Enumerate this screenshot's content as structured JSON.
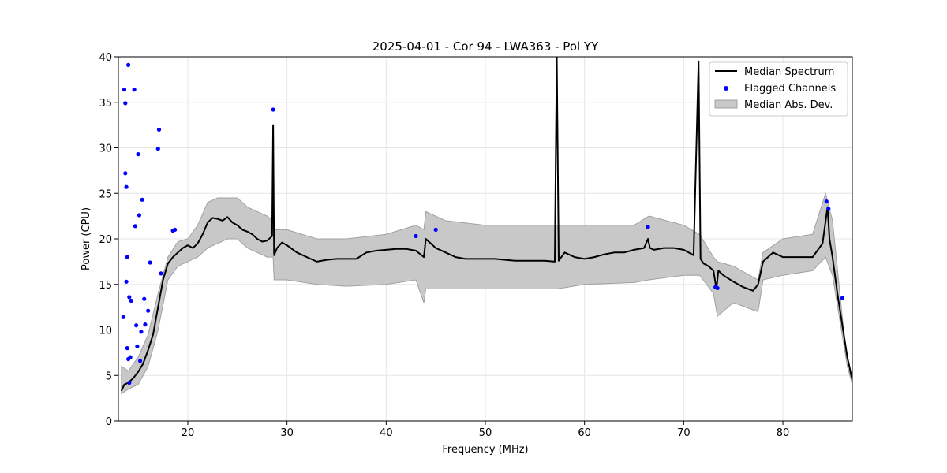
{
  "chart_data": {
    "type": "line",
    "title": "2025-04-01 - Cor 94 - LWA363 - Pol YY",
    "xlabel": "Frequency (MHz)",
    "ylabel": "Power (CPU)",
    "xlim": [
      13.0,
      87.0
    ],
    "ylim": [
      0,
      40
    ],
    "xticks": [
      20,
      30,
      40,
      50,
      60,
      70,
      80
    ],
    "yticks": [
      0,
      5,
      10,
      15,
      20,
      25,
      30,
      35,
      40
    ],
    "grid": true,
    "legend_position": "top-right",
    "legend": [
      "Median Spectrum",
      "Flagged Channels",
      "Median Abs. Dev."
    ],
    "colors": {
      "median": "#000000",
      "flagged": "#0000ff",
      "mad_fill": "#c8c8c8",
      "mad_edge": "#a0a0a0"
    },
    "series": [
      {
        "name": "Median Spectrum",
        "x": [
          13.3,
          13.6,
          14.0,
          14.5,
          15.0,
          15.5,
          16.0,
          16.5,
          17.0,
          17.5,
          18.0,
          18.5,
          19.0,
          19.5,
          20.0,
          20.5,
          21.0,
          21.5,
          22.0,
          22.5,
          23.0,
          23.5,
          24.0,
          24.5,
          25.0,
          25.5,
          26.0,
          26.5,
          27.0,
          27.5,
          28.0,
          28.5,
          28.6,
          28.7,
          29.0,
          29.5,
          30.0,
          31.0,
          32.0,
          33.0,
          34.0,
          35.0,
          36.0,
          37.0,
          38.0,
          39.0,
          40.0,
          41.0,
          42.0,
          43.0,
          43.8,
          44.0,
          45.0,
          46.0,
          47.0,
          48.0,
          49.0,
          50.0,
          51.0,
          52.0,
          53.0,
          54.0,
          55.0,
          56.0,
          57.0,
          57.2,
          57.4,
          58.0,
          59.0,
          60.0,
          61.0,
          62.0,
          63.0,
          64.0,
          65.0,
          66.0,
          66.4,
          66.6,
          67.0,
          68.0,
          69.0,
          70.0,
          71.0,
          71.5,
          71.7,
          72.0,
          72.5,
          73.0,
          73.3,
          73.5,
          74.0,
          75.0,
          76.0,
          77.0,
          77.5,
          78.0,
          79.0,
          80.0,
          81.0,
          82.0,
          83.0,
          84.0,
          84.5,
          84.7,
          85.0,
          85.5,
          86.0,
          86.5,
          87.0
        ],
        "values": [
          3.3,
          4.0,
          4.2,
          4.7,
          5.4,
          6.3,
          7.8,
          9.5,
          12.5,
          15.5,
          17.3,
          18.0,
          18.5,
          19.0,
          19.3,
          19.0,
          19.5,
          20.5,
          21.8,
          22.3,
          22.2,
          22.0,
          22.4,
          21.8,
          21.5,
          21.0,
          20.8,
          20.5,
          20.0,
          19.7,
          19.8,
          20.3,
          32.5,
          18.2,
          19.0,
          19.6,
          19.3,
          18.5,
          18.0,
          17.5,
          17.7,
          17.8,
          17.8,
          17.8,
          18.5,
          18.7,
          18.8,
          18.9,
          18.9,
          18.7,
          18.0,
          20.0,
          19.0,
          18.5,
          18.0,
          17.8,
          17.8,
          17.8,
          17.8,
          17.7,
          17.6,
          17.6,
          17.6,
          17.6,
          17.5,
          40.0,
          17.6,
          18.5,
          18.0,
          17.8,
          18.0,
          18.3,
          18.5,
          18.5,
          18.8,
          19.0,
          20.0,
          19.0,
          18.8,
          19.0,
          19.0,
          18.8,
          18.2,
          39.5,
          17.8,
          17.3,
          17.0,
          16.5,
          14.5,
          16.5,
          16.0,
          15.3,
          14.7,
          14.3,
          15.0,
          17.5,
          18.5,
          18.0,
          18.0,
          18.0,
          18.0,
          19.5,
          23.5,
          20.0,
          18.0,
          14.0,
          10.5,
          7.0,
          4.5
        ]
      }
    ],
    "mad_band": {
      "name": "Median Abs. Dev.",
      "x": [
        13.3,
        14.0,
        15.0,
        16.0,
        17.0,
        18.0,
        19.0,
        20.0,
        21.0,
        22.0,
        23.0,
        24.0,
        25.0,
        26.0,
        27.0,
        28.0,
        28.6,
        28.7,
        30.0,
        33.0,
        36.0,
        40.0,
        43.0,
        43.8,
        44.0,
        46.0,
        50.0,
        55.0,
        57.2,
        60.0,
        65.0,
        66.5,
        70.0,
        71.6,
        73.0,
        73.4,
        75.0,
        77.5,
        78.0,
        80.0,
        83.0,
        84.3,
        85.0,
        86.5,
        87.0
      ],
      "upper": [
        6.0,
        5.5,
        7.0,
        9.5,
        14.0,
        18.0,
        19.7,
        20.0,
        21.5,
        24.0,
        24.5,
        24.5,
        24.5,
        23.5,
        23.0,
        22.5,
        22.0,
        21.0,
        21.0,
        20.0,
        20.0,
        20.5,
        21.5,
        21.0,
        23.0,
        22.0,
        21.5,
        21.5,
        21.5,
        21.5,
        21.5,
        22.5,
        21.5,
        20.5,
        18.0,
        17.5,
        17.0,
        15.5,
        18.5,
        20.0,
        20.5,
        25.0,
        22.0,
        6.0,
        4.5
      ],
      "lower": [
        3.0,
        3.5,
        4.0,
        6.0,
        10.0,
        15.5,
        17.0,
        17.5,
        18.0,
        19.0,
        19.5,
        20.0,
        20.0,
        19.0,
        18.5,
        18.0,
        18.0,
        15.5,
        15.5,
        15.0,
        14.8,
        15.0,
        15.5,
        13.0,
        14.5,
        14.5,
        14.5,
        14.5,
        14.5,
        15.0,
        15.2,
        15.5,
        16.0,
        16.0,
        14.0,
        11.5,
        13.0,
        12.0,
        15.5,
        16.0,
        16.5,
        18.0,
        16.0,
        6.0,
        4.0
      ]
    },
    "flagged_channels": {
      "name": "Flagged Channels",
      "x": [
        13.5,
        13.6,
        13.7,
        13.7,
        13.8,
        13.8,
        13.9,
        13.9,
        14.0,
        14.0,
        14.1,
        14.1,
        14.2,
        14.3,
        14.6,
        14.7,
        14.8,
        14.9,
        15.0,
        15.1,
        15.2,
        15.3,
        15.4,
        15.6,
        15.7,
        16.0,
        16.2,
        17.0,
        17.1,
        17.3,
        18.5,
        18.7,
        28.6,
        43.0,
        45.0,
        66.4,
        73.2,
        73.4,
        84.4,
        84.6,
        86.0
      ],
      "y": [
        11.4,
        36.4,
        34.9,
        27.2,
        25.7,
        15.3,
        18.0,
        8.0,
        6.8,
        39.1,
        13.6,
        4.2,
        7.0,
        13.2,
        36.4,
        21.4,
        10.5,
        8.2,
        29.3,
        22.6,
        6.6,
        9.8,
        24.3,
        13.4,
        10.6,
        12.1,
        17.4,
        29.9,
        32.0,
        16.2,
        20.9,
        21.0,
        34.2,
        20.3,
        21.0,
        21.3,
        14.7,
        14.6,
        24.1,
        23.3,
        13.5
      ]
    }
  }
}
